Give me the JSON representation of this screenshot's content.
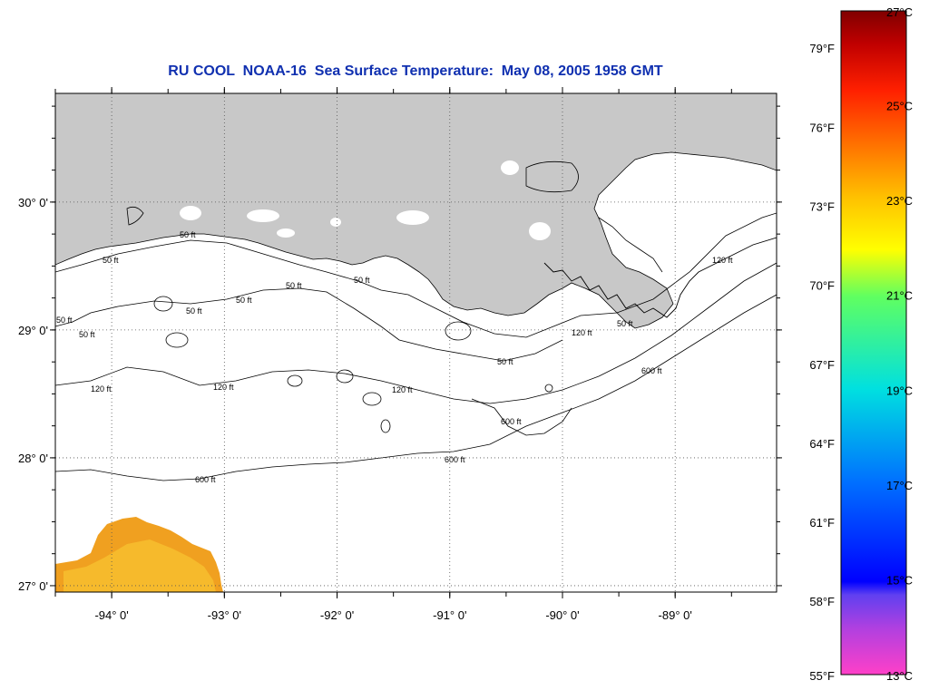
{
  "title": "RU COOL  NOAA-16  Sea Surface Temperature:  May 08, 2005 1958 GMT",
  "map": {
    "lon_range": [
      -94.5,
      -88.1
    ],
    "lat_range": [
      26.95,
      30.85
    ],
    "lon_ticks": [
      -94,
      -93,
      -92,
      -91,
      -90,
      -89
    ],
    "lat_ticks": [
      27,
      28,
      29,
      30
    ],
    "lon_tick_labels": [
      "-94° 0'",
      "-93° 0'",
      "-92° 0'",
      "-91° 0'",
      "-90° 0'",
      "-89° 0'"
    ],
    "lat_tick_labels": [
      "27° 0'",
      "28° 0'",
      "29° 0'",
      "30° 0'"
    ],
    "grid": "dotted",
    "land_color": "#c8c8c8",
    "ocean_color": "#ffffff"
  },
  "contours": {
    "labels": [
      "50 ft",
      "120 ft",
      "600 ft"
    ]
  },
  "colorbar": {
    "celsius_labels": [
      "27°C",
      "25°C",
      "23°C",
      "21°C",
      "19°C",
      "17°C",
      "15°C",
      "13°C"
    ],
    "fahrenheit_labels": [
      "79°F",
      "76°F",
      "73°F",
      "70°F",
      "67°F",
      "64°F",
      "61°F",
      "58°F",
      "55°F"
    ],
    "celsius_range": [
      13,
      27
    ],
    "colors": [
      "#ff40c8",
      "#b040e0",
      "#6040f0",
      "#0000ff",
      "#0060ff",
      "#00c0ff",
      "#00e0e0",
      "#40f0a0",
      "#80ff40",
      "#ffff00",
      "#ffc000",
      "#ff8000",
      "#ff2000",
      "#d00000",
      "#800000"
    ]
  }
}
